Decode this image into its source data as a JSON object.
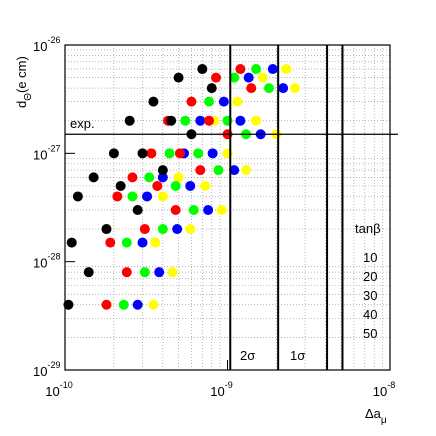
{
  "chart_data": {
    "type": "scatter",
    "x_label": {
      "text": "Δa",
      "subscript": "μ"
    },
    "y_label": {
      "text": "d",
      "subscript": "Θ",
      "suffix": "(e cm)"
    },
    "log_x": true,
    "log_y": true,
    "grid": true,
    "xlim": [
      1e-10,
      1e-08
    ],
    "ylim": [
      1e-29,
      1e-26
    ],
    "xticks": [
      {
        "value": 1e-10,
        "label": "10",
        "exponent": "-10"
      },
      {
        "value": 1e-09,
        "label": "10",
        "exponent": "-9"
      },
      {
        "value": 1e-08,
        "label": "10",
        "exponent": "-8"
      }
    ],
    "yticks": [
      {
        "value": 1e-29,
        "label": "10",
        "exponent": "-29"
      },
      {
        "value": 1e-28,
        "label": "10",
        "exponent": "-28"
      },
      {
        "value": 1e-27,
        "label": "10",
        "exponent": "-27"
      },
      {
        "value": 1e-26,
        "label": "10",
        "exponent": "-26"
      }
    ],
    "vlines": [
      1.04e-09,
      2.05e-09,
      4.1e-09,
      5.1e-09
    ],
    "hline": 1.5e-27,
    "annotations": [
      {
        "text": "exp."
      },
      {
        "text": "2σ"
      },
      {
        "text": "1σ"
      }
    ],
    "legend_title": "tanβ",
    "legend": "lower right",
    "series": [
      {
        "name": "10",
        "color": "#000000",
        "x": [
          1.05e-10,
          1.1e-10,
          1.2e-10,
          1.4e-10,
          1.5e-10,
          1.8e-10,
          2e-10,
          2.2e-10,
          2.5e-10,
          2.8e-10,
          3e-10,
          3.5e-10,
          4e-10,
          4.5e-10,
          5e-10,
          6e-10,
          7e-10,
          8e-10
        ],
        "values": [
          4e-29,
          1.5e-28,
          4e-28,
          8e-29,
          6e-28,
          2e-28,
          1e-27,
          5e-28,
          2e-27,
          3e-28,
          1e-27,
          3e-27,
          7e-28,
          2e-27,
          5e-27,
          1.5e-27,
          6e-27,
          4e-27
        ]
      },
      {
        "name": "20",
        "color": "#ff0000",
        "x": [
          1.8e-10,
          1.9e-10,
          2.1e-10,
          2.4e-10,
          2.6e-10,
          3.1e-10,
          3.4e-10,
          3.7e-10,
          4.3e-10,
          4.8e-10,
          5.1e-10,
          6e-10,
          6.8e-10,
          7.7e-10,
          8.5e-10,
          1e-09,
          1.2e-09,
          1.4e-09
        ],
        "values": [
          4e-29,
          1.5e-28,
          4e-28,
          8e-29,
          6e-28,
          2e-28,
          1e-27,
          5e-28,
          2e-27,
          3e-28,
          1e-27,
          3e-27,
          7e-28,
          2e-27,
          5e-27,
          1.5e-27,
          6e-27,
          4e-27
        ]
      },
      {
        "name": "30",
        "color": "#00ff00",
        "x": [
          2.3e-10,
          2.4e-10,
          2.6e-10,
          3.1e-10,
          3.3e-10,
          4e-10,
          4.4e-10,
          4.8e-10,
          5.5e-10,
          6.2e-10,
          6.6e-10,
          7.7e-10,
          8.8e-10,
          1e-09,
          1.1e-09,
          1.3e-09,
          1.5e-09,
          1.8e-09
        ],
        "values": [
          4e-29,
          1.5e-28,
          4e-28,
          8e-29,
          6e-28,
          2e-28,
          1e-27,
          5e-28,
          2e-27,
          3e-28,
          1e-27,
          3e-27,
          7e-28,
          2e-27,
          5e-27,
          1.5e-27,
          6e-27,
          4e-27
        ]
      },
      {
        "name": "40",
        "color": "#0000ff",
        "x": [
          2.8e-10,
          3e-10,
          3.2e-10,
          3.8e-10,
          4e-10,
          4.9e-10,
          5.4e-10,
          5.9e-10,
          6.8e-10,
          7.6e-10,
          8.1e-10,
          9.5e-10,
          1.1e-09,
          1.2e-09,
          1.35e-09,
          1.6e-09,
          1.9e-09,
          2.2e-09
        ],
        "values": [
          4e-29,
          1.5e-28,
          4e-28,
          8e-29,
          6e-28,
          2e-28,
          1e-27,
          5e-28,
          2e-27,
          3e-28,
          1e-27,
          3e-27,
          7e-28,
          2e-27,
          5e-27,
          1.5e-27,
          6e-27,
          4e-27
        ]
      },
      {
        "name": "50",
        "color": "#ffff00",
        "x": [
          3.5e-10,
          3.6e-10,
          4e-10,
          4.6e-10,
          5e-10,
          5.9e-10,
          6.6e-10,
          7.3e-10,
          8.3e-10,
          9.2e-10,
          1e-09,
          1.15e-09,
          1.3e-09,
          1.5e-09,
          1.65e-09,
          2e-09,
          2.3e-09,
          2.6e-09
        ],
        "values": [
          4e-29,
          1.5e-28,
          4e-28,
          8e-29,
          6e-28,
          2e-28,
          1e-27,
          5e-28,
          2e-27,
          3e-28,
          1e-27,
          3e-27,
          7e-28,
          2e-27,
          5e-27,
          1.5e-27,
          6e-27,
          4e-27
        ]
      }
    ]
  }
}
